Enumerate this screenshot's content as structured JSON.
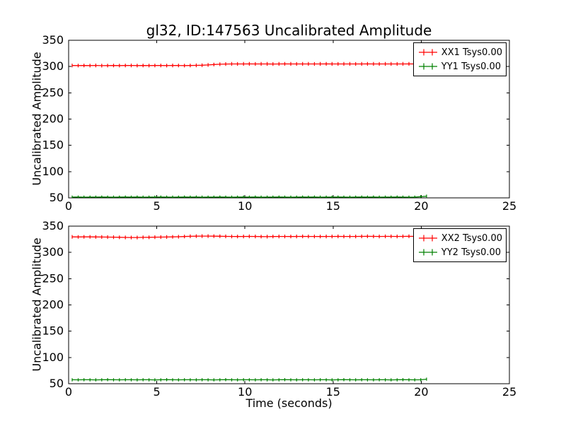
{
  "title": "gl32, ID:147563 Uncalibrated Amplitude",
  "colors": {
    "xx_series": "#ff0000",
    "yy_series": "#008000",
    "axis": "#000000",
    "background": "#ffffff"
  },
  "chart_data": [
    {
      "type": "line",
      "subplot": "top",
      "ylabel": "Uncalibrated Amplitude",
      "xlabel": "",
      "xlim": [
        0,
        25
      ],
      "ylim": [
        50,
        350
      ],
      "xticks": [
        0,
        5,
        10,
        15,
        20,
        25
      ],
      "yticks": [
        50,
        100,
        150,
        200,
        250,
        300,
        350
      ],
      "grid": false,
      "legend_position": "upper right",
      "x": [
        0.2,
        0.54,
        0.87,
        1.21,
        1.54,
        1.88,
        2.21,
        2.55,
        2.88,
        3.22,
        3.55,
        3.89,
        4.22,
        4.56,
        4.89,
        5.23,
        5.56,
        5.9,
        6.23,
        6.57,
        6.9,
        7.24,
        7.57,
        7.91,
        8.24,
        8.58,
        8.91,
        9.25,
        9.58,
        9.92,
        10.25,
        10.59,
        10.92,
        11.26,
        11.59,
        11.93,
        12.26,
        12.6,
        12.93,
        13.27,
        13.6,
        13.94,
        14.27,
        14.61,
        14.94,
        15.28,
        15.61,
        15.95,
        16.28,
        16.62,
        16.95,
        17.29,
        17.62,
        17.96,
        18.29,
        18.63,
        18.96,
        19.3,
        19.63,
        19.97,
        20.3
      ],
      "series": [
        {
          "name": "XX1 Tsys0.00",
          "color": "#ff0000",
          "yerr": 3.5,
          "values": [
            302,
            301.8,
            302,
            301.9,
            302.1,
            301.7,
            301.9,
            302,
            301.8,
            302,
            302.1,
            301.9,
            302,
            301.8,
            302,
            302,
            301.9,
            302.1,
            302,
            301.9,
            302,
            302.2,
            302.5,
            303,
            303.8,
            304.4,
            304.8,
            305,
            304.9,
            305,
            305.1,
            304.9,
            305,
            305,
            304.8,
            305,
            305.1,
            305,
            304.9,
            305,
            305,
            304.9,
            305,
            305.1,
            305,
            304.9,
            305,
            305,
            304.9,
            305,
            305.1,
            305,
            304.9,
            305,
            305,
            304.9,
            305,
            305.1,
            305,
            304.9,
            305
          ]
        },
        {
          "name": "YY1 Tsys0.00",
          "color": "#008000",
          "yerr": 3.0,
          "values": [
            51.5,
            51.6,
            51.4,
            51.5,
            51.5,
            51.6,
            51.5,
            51.4,
            51.5,
            51.6,
            51.5,
            51.6,
            51.4,
            51.5,
            51.5,
            51.6,
            51.5,
            51.4,
            51.5,
            51.6,
            51.5,
            51.6,
            51.4,
            51.5,
            51.5,
            51.6,
            51.5,
            51.4,
            51.5,
            51.6,
            51.5,
            51.6,
            51.4,
            51.5,
            51.5,
            51.6,
            51.5,
            51.4,
            51.5,
            51.6,
            51.5,
            51.6,
            51.4,
            51.5,
            51.5,
            51.6,
            51.5,
            51.4,
            51.5,
            51.6,
            51.5,
            51.6,
            51.4,
            51.5,
            51.5,
            51.6,
            51.5,
            51.4,
            51.5,
            52.3,
            53.2
          ]
        }
      ]
    },
    {
      "type": "line",
      "subplot": "bottom",
      "ylabel": "Uncalibrated Amplitude",
      "xlabel": "Time (seconds)",
      "xlim": [
        0,
        25
      ],
      "ylim": [
        50,
        350
      ],
      "xticks": [
        0,
        5,
        10,
        15,
        20,
        25
      ],
      "yticks": [
        50,
        100,
        150,
        200,
        250,
        300,
        350
      ],
      "grid": false,
      "legend_position": "upper right",
      "x": [
        0.2,
        0.54,
        0.87,
        1.21,
        1.54,
        1.88,
        2.21,
        2.55,
        2.88,
        3.22,
        3.55,
        3.89,
        4.22,
        4.56,
        4.89,
        5.23,
        5.56,
        5.9,
        6.23,
        6.57,
        6.9,
        7.24,
        7.57,
        7.91,
        8.24,
        8.58,
        8.91,
        9.25,
        9.58,
        9.92,
        10.25,
        10.59,
        10.92,
        11.26,
        11.59,
        11.93,
        12.26,
        12.6,
        12.93,
        13.27,
        13.6,
        13.94,
        14.27,
        14.61,
        14.94,
        15.28,
        15.61,
        15.95,
        16.28,
        16.62,
        16.95,
        17.29,
        17.62,
        17.96,
        18.29,
        18.63,
        18.96,
        19.3,
        19.63,
        19.97,
        20.3
      ],
      "series": [
        {
          "name": "XX2 Tsys0.00",
          "color": "#ff0000",
          "yerr": 3.5,
          "values": [
            329.5,
            329.4,
            329.5,
            329.6,
            329.4,
            329.3,
            329.2,
            329,
            328.8,
            328.5,
            328.3,
            328.4,
            328.6,
            328.8,
            329,
            329.2,
            329.3,
            329.5,
            329.8,
            330.2,
            330.6,
            330.9,
            331,
            331,
            330.9,
            330.8,
            330.5,
            330.3,
            330.2,
            330.4,
            330.5,
            330.3,
            330.1,
            330,
            330.2,
            330.4,
            330.3,
            330.2,
            330.4,
            330.5,
            330.4,
            330.3,
            330.2,
            330.3,
            330.4,
            330.5,
            330.4,
            330.3,
            330.4,
            330.5,
            330.6,
            330.5,
            330.4,
            330.5,
            330.5,
            330.4,
            330.5,
            330.6,
            330.5,
            330.4,
            330.5
          ]
        },
        {
          "name": "YY2 Tsys0.00",
          "color": "#008000",
          "yerr": 3.0,
          "values": [
            57.5,
            57.4,
            57.6,
            57.5,
            57.3,
            57.5,
            57.7,
            57.5,
            57.4,
            57.6,
            57.5,
            57.4,
            57.6,
            57.5,
            57.3,
            57.5,
            57.7,
            57.5,
            57.4,
            57.6,
            57.5,
            57.4,
            57.6,
            57.5,
            57.3,
            57.5,
            57.7,
            57.5,
            57.4,
            57.6,
            57.5,
            57.4,
            57.6,
            57.5,
            57.3,
            57.5,
            57.7,
            57.5,
            57.4,
            57.6,
            57.5,
            57.4,
            57.6,
            57.5,
            57.3,
            57.5,
            57.7,
            57.5,
            57.4,
            57.6,
            57.5,
            57.4,
            57.6,
            57.5,
            57.3,
            57.5,
            57.7,
            57.5,
            57.4,
            57.6,
            58.6
          ]
        }
      ]
    }
  ]
}
